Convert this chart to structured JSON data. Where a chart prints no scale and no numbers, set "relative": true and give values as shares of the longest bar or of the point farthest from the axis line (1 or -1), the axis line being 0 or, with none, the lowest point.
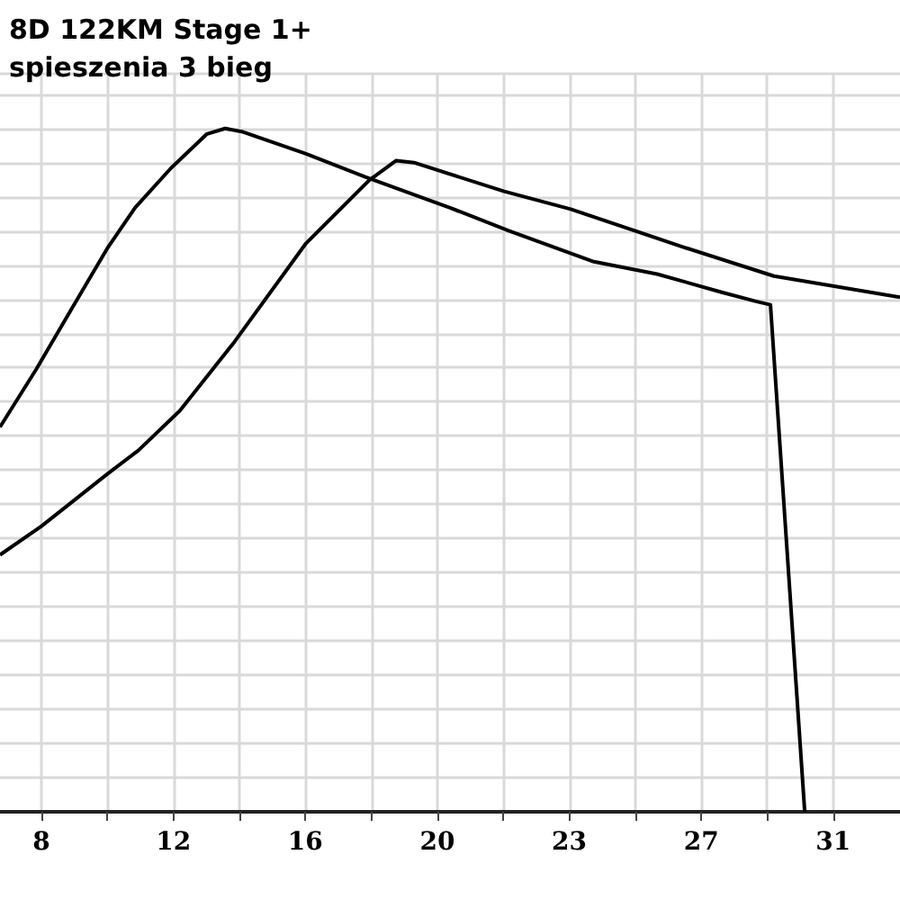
{
  "chart_data": {
    "type": "line",
    "title": "8D 122KM Stage 1+",
    "subtitle": "spieszenia 3 bieg",
    "relative": true,
    "grid": true,
    "marker": "none",
    "line_style": "solid",
    "tick_labels": "x",
    "xlim": [
      6.79,
      33.05
    ],
    "xticks": [
      {
        "value": 8,
        "label": "8"
      },
      {
        "value": 9.925,
        "label": null
      },
      {
        "value": 11.85,
        "label": "12"
      },
      {
        "value": 13.775,
        "label": null
      },
      {
        "value": 15.7,
        "label": "16"
      },
      {
        "value": 17.625,
        "label": null
      },
      {
        "value": 19.55,
        "label": "20"
      },
      {
        "value": 21.475,
        "label": null
      },
      {
        "value": 23.4,
        "label": "23"
      },
      {
        "value": 25.325,
        "label": null
      },
      {
        "value": 27.25,
        "label": "27"
      },
      {
        "value": 29.175,
        "label": null
      },
      {
        "value": 31.1,
        "label": "31"
      }
    ],
    "series": [
      {
        "color": "#000000",
        "x": [
          6.79,
          7.84,
          8.89,
          9.94,
          10.73,
          11.78,
          12.83,
          13.36,
          13.88,
          15.72,
          17.45,
          19.92,
          21.65,
          24.12,
          25.96,
          27.8,
          28.85,
          29.27,
          30.27
        ],
        "values": [
          0.563,
          0.647,
          0.737,
          0.826,
          0.884,
          0.942,
          0.992,
          1,
          0.995,
          0.963,
          0.929,
          0.884,
          0.85,
          0.805,
          0.787,
          0.761,
          0.747,
          0.742,
          0
        ]
      },
      {
        "color": "#000000",
        "x": [
          6.79,
          8.0,
          9.94,
          10.83,
          12.04,
          13.62,
          15.72,
          17.56,
          18.35,
          18.87,
          21.5,
          23.44,
          26.75,
          29.37,
          33.05
        ],
        "values": [
          0.376,
          0.418,
          0.495,
          0.529,
          0.587,
          0.687,
          0.832,
          0.924,
          0.953,
          0.95,
          0.908,
          0.882,
          0.826,
          0.784,
          0.753
        ]
      }
    ]
  }
}
